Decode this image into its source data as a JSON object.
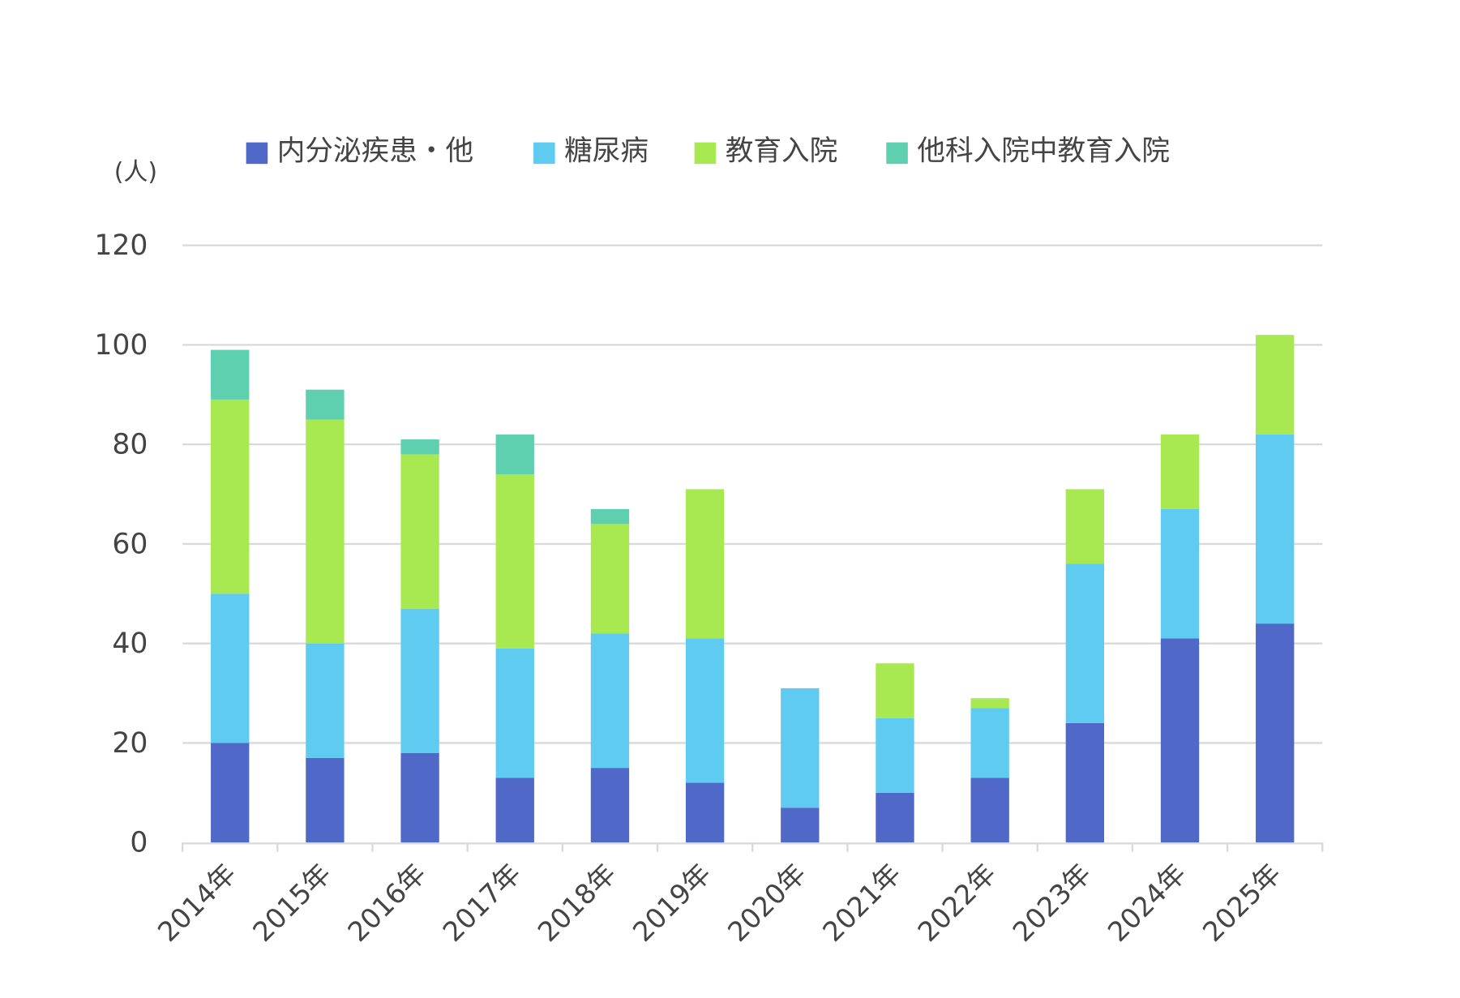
{
  "chart_data": {
    "type": "bar",
    "stacked": true,
    "unit_label": "(人)",
    "categories": [
      "2014年",
      "2015年",
      "2016年",
      "2017年",
      "2018年",
      "2019年",
      "2020年",
      "2021年",
      "2022年",
      "2023年",
      "2024年",
      "2025年"
    ],
    "series": [
      {
        "name": "内分泌疾患・他",
        "color": "#5068C8",
        "values": [
          20,
          17,
          18,
          13,
          15,
          12,
          7,
          10,
          13,
          24,
          41,
          44
        ]
      },
      {
        "name": "糖尿病",
        "color": "#5FCBF1",
        "values": [
          30,
          23,
          29,
          26,
          27,
          29,
          24,
          15,
          14,
          32,
          26,
          38
        ]
      },
      {
        "name": "教育入院",
        "color": "#A8E850",
        "values": [
          39,
          45,
          31,
          35,
          22,
          30,
          0,
          11,
          2,
          15,
          15,
          20
        ]
      },
      {
        "name": "他科入院中教育入院",
        "color": "#5ED0B0",
        "values": [
          10,
          6,
          3,
          8,
          3,
          0,
          0,
          0,
          0,
          0,
          0,
          0
        ]
      }
    ],
    "ylim": [
      0,
      120
    ],
    "yticks": [
      "0",
      "20",
      "40",
      "60",
      "80",
      "100",
      "120"
    ],
    "grid": true,
    "legend": "top"
  }
}
